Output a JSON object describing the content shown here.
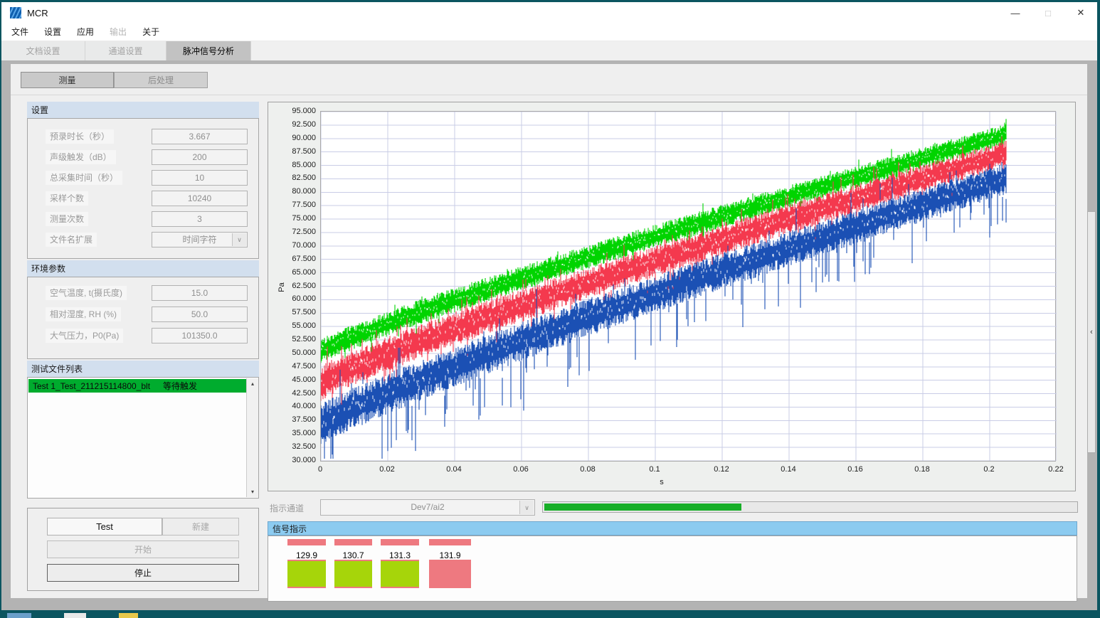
{
  "window": {
    "title": "MCR",
    "controls": [
      {
        "name": "minimize",
        "glyph": "—"
      },
      {
        "name": "maximize",
        "glyph": "□"
      },
      {
        "name": "close",
        "glyph": "✕"
      }
    ]
  },
  "menu": {
    "items": [
      {
        "label": "文件",
        "enabled": true
      },
      {
        "label": "设置",
        "enabled": true
      },
      {
        "label": "应用",
        "enabled": true
      },
      {
        "label": "输出",
        "enabled": false
      },
      {
        "label": "关于",
        "enabled": true
      }
    ]
  },
  "tabs": [
    {
      "label": "文档设置",
      "active": false
    },
    {
      "label": "通道设置",
      "active": false
    },
    {
      "label": "脉冲信号分析",
      "active": true
    }
  ],
  "subtabs": [
    {
      "label": "测量"
    },
    {
      "label": "后处理"
    }
  ],
  "settings_group": {
    "title": "设置",
    "fields": [
      {
        "label": "预录时长（秒）",
        "value": "3.667"
      },
      {
        "label": "声级触发（dB）",
        "value": "200"
      },
      {
        "label": "总采集时间（秒）",
        "value": "10"
      },
      {
        "label": "采样个数",
        "value": "10240"
      },
      {
        "label": "测量次数",
        "value": "3"
      }
    ],
    "dropdown": {
      "label": "文件名扩展",
      "value": "时间字符"
    }
  },
  "environment_group": {
    "title": "环境参数",
    "fields": [
      {
        "label": "空气温度, t(摄氏度)",
        "value": "15.0"
      },
      {
        "label": "相对湿度, RH (%)",
        "value": "50.0"
      },
      {
        "label": "大气压力，P0(Pa)",
        "value": "101350.0"
      }
    ]
  },
  "file_list": {
    "title": "测试文件列表",
    "rows": [
      {
        "name": "Test 1_Test_211215114800_blt",
        "status": "等待触发",
        "highlight": "#00ac2e"
      }
    ]
  },
  "controls_group": {
    "test_label": "Test",
    "new_label": "新建",
    "start_label": "开始",
    "stop_label": "停止"
  },
  "indicator": {
    "label": "指示通道",
    "channel": "Dev7/ai2",
    "progress_percent": 37,
    "progress_color": "#17ae27"
  },
  "signal_panel": {
    "title": "信号指示",
    "header_color": "#8ccbf0",
    "led_color": "#ee7980",
    "cells": [
      {
        "value": "129.9",
        "color": "#a6d50a"
      },
      {
        "value": "130.7",
        "color": "#a6d50a"
      },
      {
        "value": "131.3",
        "color": "#a6d50a"
      },
      {
        "value": "131.9",
        "color": "#ee7980"
      }
    ]
  },
  "icons": {
    "dropdown_chevron": "∨",
    "scroll_up": "▴",
    "scroll_down": "▾",
    "collapse_handle": "‹"
  },
  "chart_data": {
    "type": "line",
    "description": "Three noisy rising sound-pressure signal bands vs time",
    "xlabel": "s",
    "ylabel": "Pa",
    "xlim": [
      0,
      0.22
    ],
    "ylim": [
      30,
      95
    ],
    "grid": true,
    "grid_color": "#c9cce6",
    "signal_x_end": 0.205,
    "x_ticks": [
      {
        "value": 0.0,
        "label": "0"
      },
      {
        "value": 0.02,
        "label": "0.02"
      },
      {
        "value": 0.04,
        "label": "0.04"
      },
      {
        "value": 0.06,
        "label": "0.06"
      },
      {
        "value": 0.08,
        "label": "0.08"
      },
      {
        "value": 0.1,
        "label": "0.1"
      },
      {
        "value": 0.12,
        "label": "0.12"
      },
      {
        "value": 0.14,
        "label": "0.14"
      },
      {
        "value": 0.16,
        "label": "0.16"
      },
      {
        "value": 0.18,
        "label": "0.18"
      },
      {
        "value": 0.2,
        "label": "0.2"
      },
      {
        "value": 0.22,
        "label": "0.22"
      }
    ],
    "y_ticks": [
      95,
      92.5,
      90,
      87.5,
      85,
      82.5,
      80,
      77.5,
      75,
      72.5,
      70,
      67.5,
      65,
      62.5,
      60,
      57.5,
      55,
      52.5,
      50,
      47.5,
      45,
      42.5,
      40,
      37.5,
      35,
      32.5,
      30
    ],
    "series": [
      {
        "name": "signal-green",
        "color": "#00d400",
        "start_center": 50.3,
        "end_center": 90.7,
        "start_halfwidth": 2.4,
        "end_halfwidth": 2.0,
        "curve_exponent": 0.88,
        "spike_down_prob": 0.03,
        "spike_up_prob": 0.03,
        "spike_scale": 0.9
      },
      {
        "name": "signal-red",
        "color": "#f4394e",
        "start_center": 44.4,
        "end_center": 87.2,
        "start_halfwidth": 3.3,
        "end_halfwidth": 2.5,
        "curve_exponent": 0.88,
        "spike_down_prob": 0.05,
        "spike_up_prob": 0.05,
        "spike_scale": 1.1
      },
      {
        "name": "signal-blue",
        "color": "#1b50b4",
        "start_center": 36.6,
        "end_center": 82.6,
        "start_halfwidth": 3.9,
        "end_halfwidth": 3.0,
        "curve_exponent": 0.88,
        "spike_down_prob": 0.1,
        "spike_up_prob": 0.02,
        "spike_scale": 1.8
      }
    ]
  }
}
